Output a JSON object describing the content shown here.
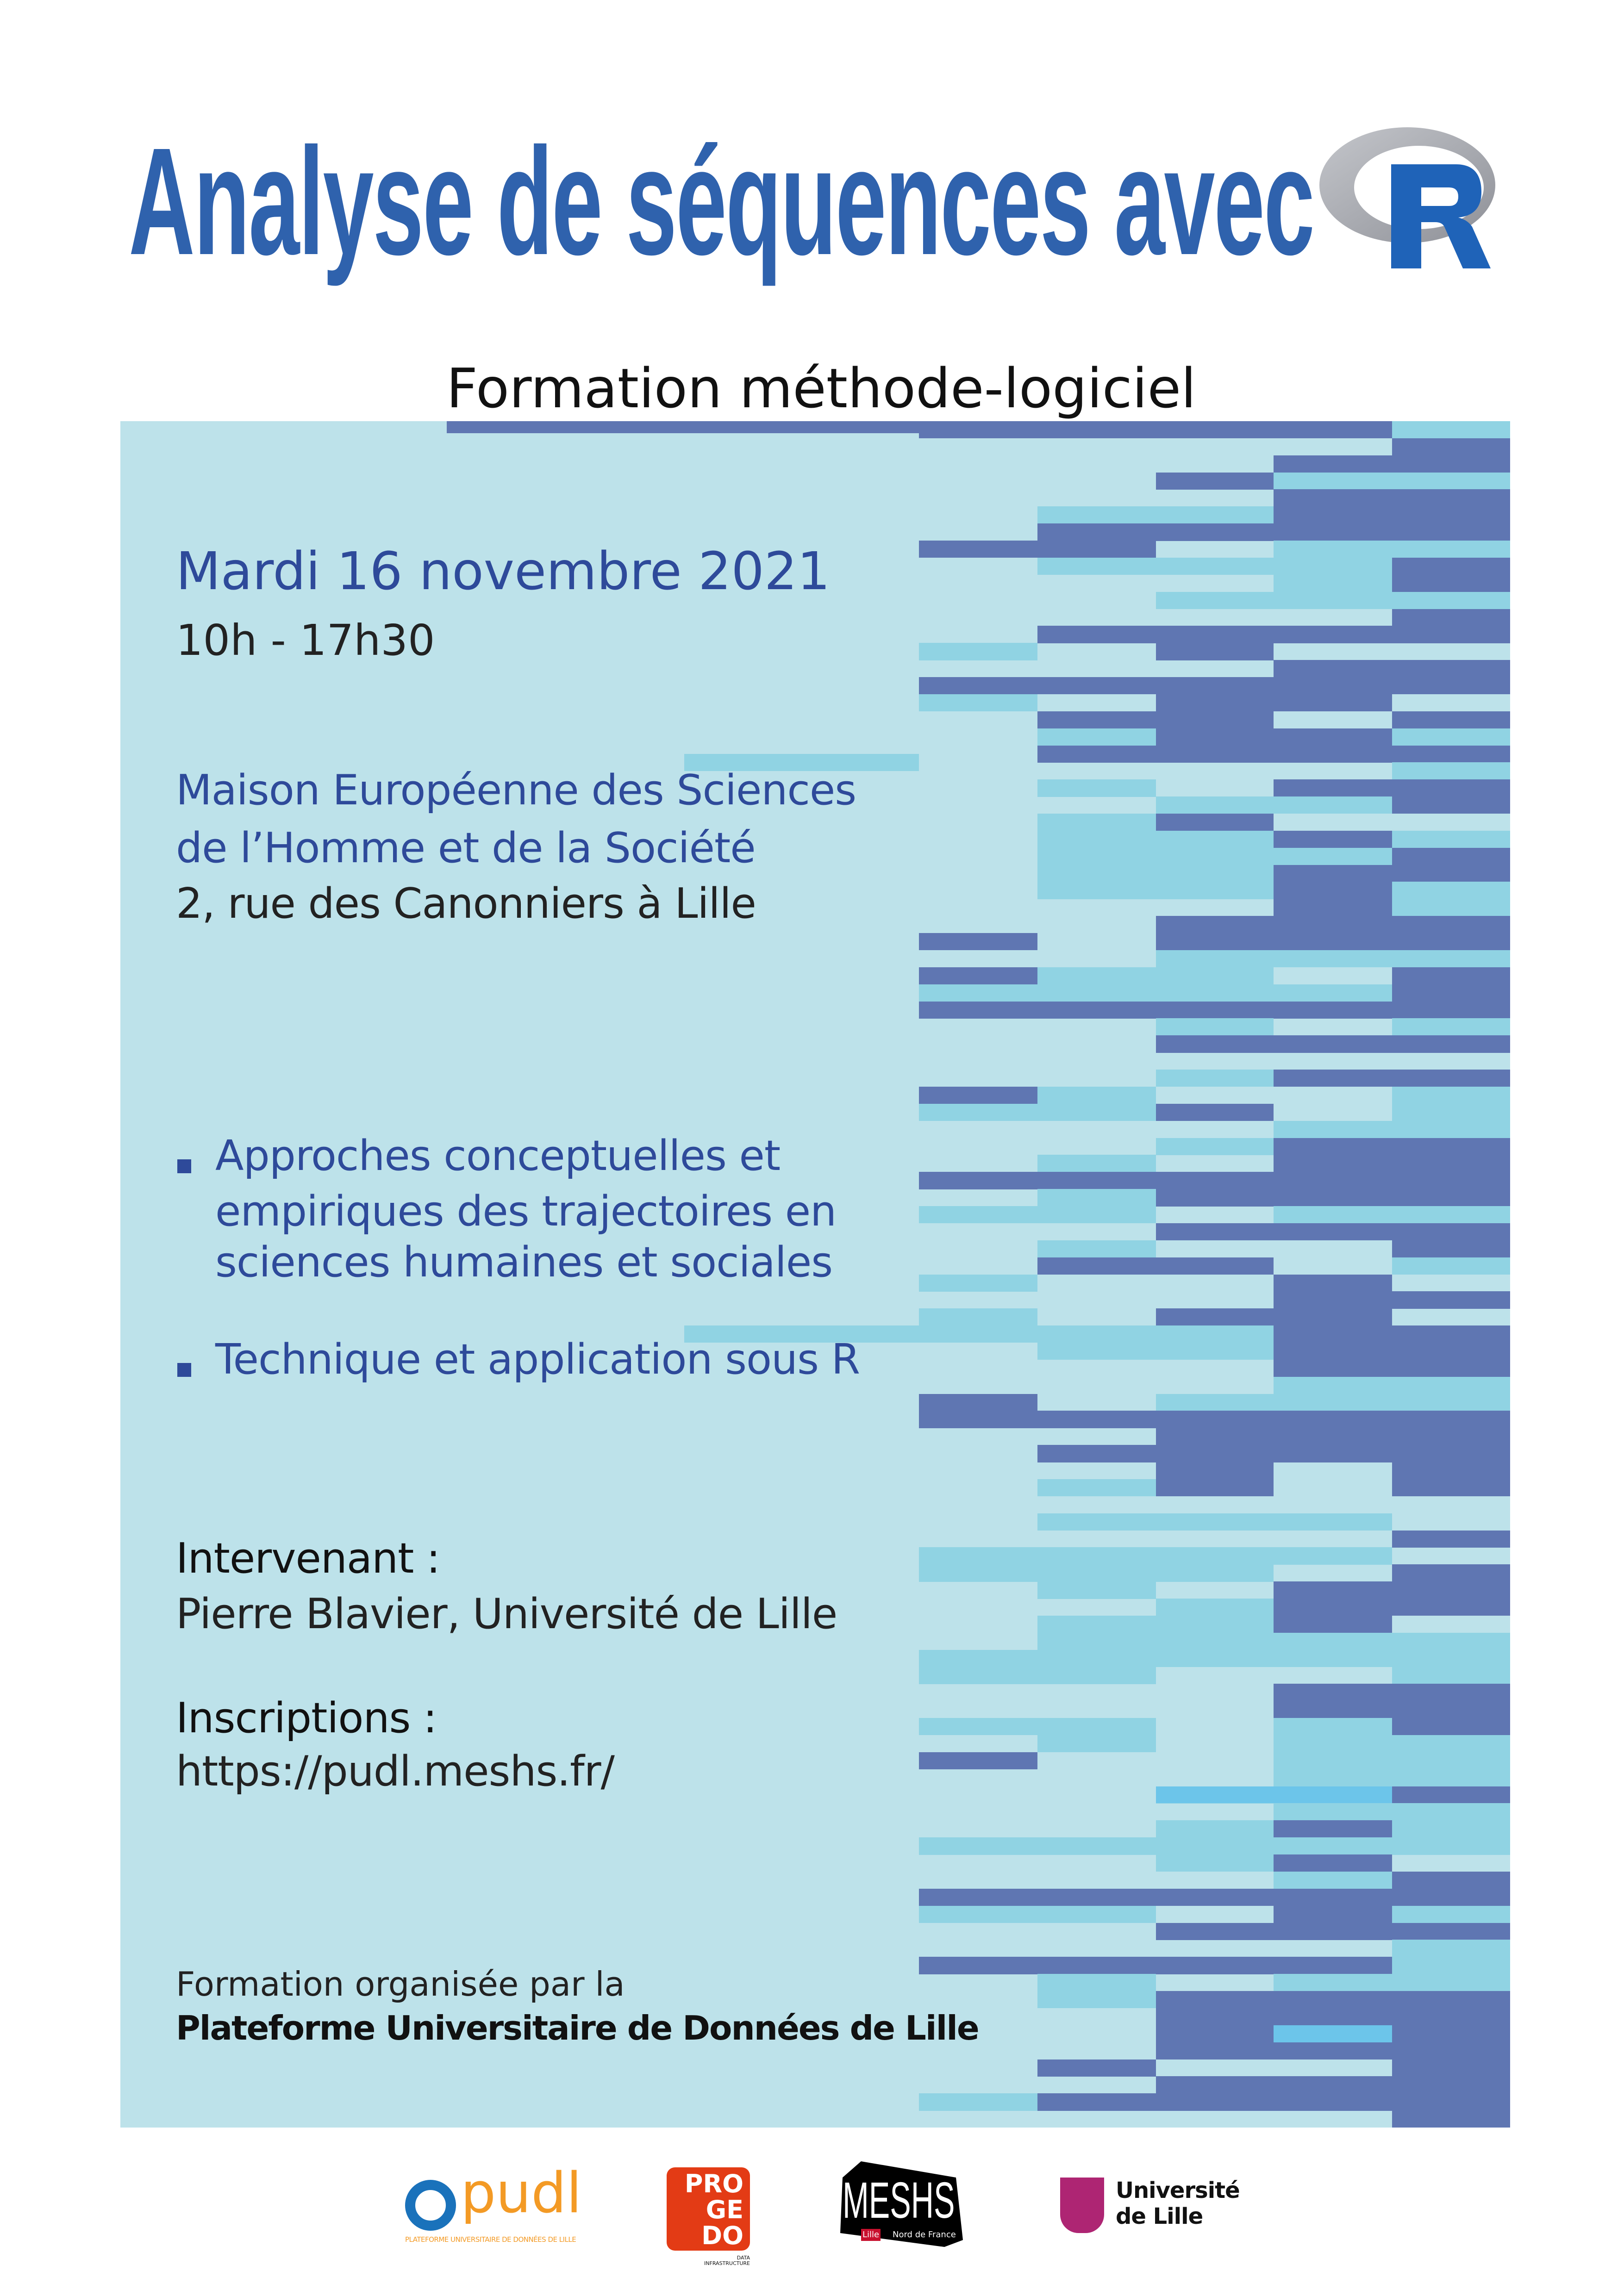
{
  "header": {
    "title": "Analyse de séquences avec",
    "logo": "R",
    "subtitle": "Formation méthode-logiciel"
  },
  "event": {
    "date": "Mardi 16 novembre 2021",
    "time": "10h - 17h30",
    "venue_line1": "Maison Européenne des Sciences",
    "venue_line2": "de l’Homme et de la Société",
    "address": "2, rue des Canonniers à Lille"
  },
  "topics": [
    {
      "lines": [
        "Approches conceptuelles et",
        "empiriques des trajectoires en",
        "sciences humaines et sociales"
      ]
    },
    {
      "lines": [
        "Technique et application sous R"
      ]
    }
  ],
  "speaker": {
    "label": "Intervenant :",
    "value": "Pierre Blavier, Université de Lille"
  },
  "registration": {
    "label": "Inscriptions :",
    "value": "https://pudl.meshs.fr/"
  },
  "organizer": {
    "intro": "Formation organisée par la",
    "name": "Plateforme Universitaire de Données de Lille"
  },
  "logos": {
    "pudl": {
      "name": "pudl",
      "caption": "PLATEFORME UNIVERSITAIRE DE DONNÉES DE LILLE"
    },
    "progedo": {
      "lines": [
        "PRO",
        "GE",
        "DO"
      ],
      "caption1": "DATA",
      "caption2": "INFRASTRUCTURE"
    },
    "meshs": {
      "name": "MESHS",
      "tag1": "Lille",
      "tag2": "Nord de France"
    },
    "ulille": {
      "line1": "Université",
      "line2": "de Lille"
    }
  },
  "colors": {
    "title": "#2f62ad",
    "text_blue": "#2e4a9a",
    "panel": "#bde2ea",
    "seq_mid": "#90d3e3",
    "seq_dark": "#5f76b2",
    "seq_bright": "#6cc5ea"
  }
}
